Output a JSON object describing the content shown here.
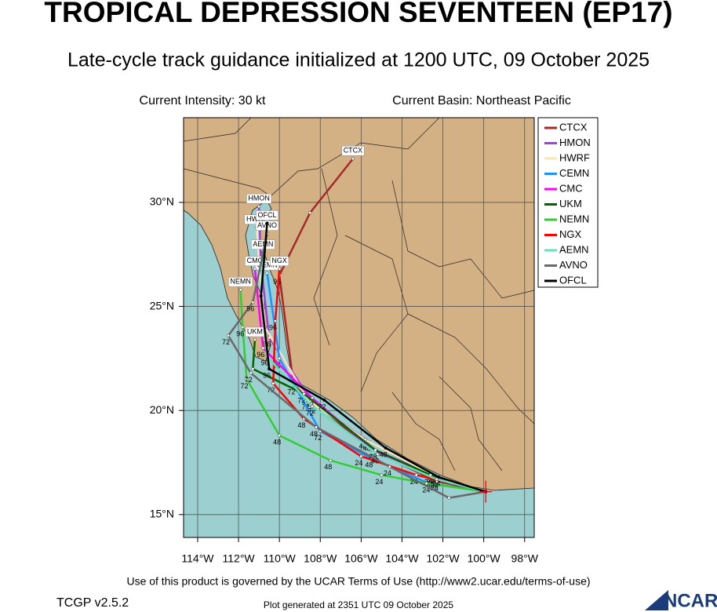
{
  "chart_data": {
    "type": "line",
    "title": "TROPICAL DEPRESSION SEVENTEEN (EP17)",
    "subtitle": "Late-cycle track guidance initialized at 1200 UTC, 09 October 2025",
    "intensity": "Current Intensity: 30 kt",
    "basin": "Current Basin: Northeast Pacific",
    "footer": "Use of this product is governed by the UCAR Terms of Use (http://www2.ucar.edu/terms-of-use)",
    "version": "TCGP v2.5.2",
    "generated": "Plot generated at 2351 UTC   09 October 2025",
    "logo": "NCAR",
    "xlim": [
      -114.69,
      -97.53
    ],
    "ylim": [
      13.9,
      34.07
    ],
    "xticks": [
      {
        "value": -114,
        "label": "114°W"
      },
      {
        "value": -112,
        "label": "112°W"
      },
      {
        "value": -110,
        "label": "110°W"
      },
      {
        "value": -108,
        "label": "108°W"
      },
      {
        "value": -106,
        "label": "106°W"
      },
      {
        "value": -104,
        "label": "104°W"
      },
      {
        "value": -102,
        "label": "102°W"
      },
      {
        "value": -100,
        "label": "100°W"
      },
      {
        "value": -98,
        "label": "98°W"
      }
    ],
    "yticks": [
      {
        "value": 15,
        "label": "15°N"
      },
      {
        "value": 20,
        "label": "20°N"
      },
      {
        "value": 25,
        "label": "25°N"
      },
      {
        "value": 30,
        "label": "30°N"
      }
    ],
    "grid": true,
    "legend": "upper right",
    "series": [
      {
        "name": "CTCX",
        "color": "#a52a2a",
        "x": [
          -99.9,
          -102.3,
          -105.5,
          -109.3,
          -110.0,
          -108.5,
          -106.4
        ],
        "values": [
          16.1,
          16.6,
          18.1,
          21.2,
          26.5,
          29.5,
          32.1
        ],
        "labels": [
          null,
          "24",
          "48",
          "72",
          "96",
          null,
          null
        ]
      },
      {
        "name": "HMON",
        "color": "#a040e0",
        "x": [
          -99.9,
          -102.4,
          -105.6,
          -108.3,
          -110.5,
          -110.9,
          -111.0
        ],
        "values": [
          16.1,
          16.8,
          18.5,
          20.3,
          23.5,
          27.0,
          29.8
        ],
        "labels": [
          null,
          "24",
          "48",
          "72",
          "96",
          null,
          null
        ]
      },
      {
        "name": "HWRF",
        "color": "#ffe4b5",
        "x": [
          -99.9,
          -102.5,
          -105.8,
          -108.6,
          -110.7,
          -111.0,
          -111.1
        ],
        "values": [
          16.1,
          16.9,
          18.6,
          20.5,
          24.0,
          27.0,
          28.8
        ],
        "labels": [
          null,
          "24",
          "48",
          "72",
          "96",
          null,
          null
        ]
      },
      {
        "name": "CEMN",
        "color": "#1e90ff",
        "x": [
          -99.9,
          -102.7,
          -105.5,
          -108.0,
          -110.0,
          -110.6
        ],
        "values": [
          16.1,
          16.5,
          17.7,
          19.0,
          22.5,
          26.6
        ],
        "labels": [
          null,
          "24",
          "48",
          "72",
          "96",
          null
        ]
      },
      {
        "name": "CMC",
        "color": "#ff00ff",
        "x": [
          -99.9,
          -102.5,
          -105.3,
          -108.4,
          -110.8,
          -111.2
        ],
        "values": [
          16.1,
          16.8,
          18.0,
          20.6,
          23.0,
          26.8
        ],
        "labels": [
          null,
          "24",
          "48",
          "72",
          "96",
          null
        ]
      },
      {
        "name": "UKM",
        "color": "#006400",
        "x": [
          -99.9,
          -102.6,
          -105.3,
          -108.8,
          -111.3,
          -111.2
        ],
        "values": [
          16.1,
          16.9,
          18.1,
          20.8,
          22.0,
          23.4
        ],
        "labels": [
          null,
          "24",
          "48",
          "72",
          null,
          null
        ]
      },
      {
        "name": "NEMN",
        "color": "#32cd32",
        "x": [
          -99.9,
          -102.8,
          -105.0,
          -107.5,
          -110.0,
          -111.6,
          -111.8,
          -111.9
        ],
        "values": [
          16.1,
          16.5,
          16.9,
          17.6,
          18.8,
          21.5,
          24.0,
          25.8
        ],
        "labels": [
          null,
          null,
          "24",
          "48",
          "48",
          "72",
          "96",
          null
        ]
      },
      {
        "name": "NGX",
        "color": "#ff0000",
        "x": [
          -99.9,
          -101.5,
          -103.3,
          -106.0,
          -108.8,
          -110.3,
          -110.2,
          -110.0
        ],
        "values": [
          16.1,
          16.5,
          16.9,
          17.8,
          19.6,
          21.3,
          24.3,
          26.8
        ],
        "labels": [
          null,
          null,
          "24",
          "24",
          "48",
          "72",
          "96",
          null
        ]
      },
      {
        "name": "AEMN",
        "color": "#66e0c0",
        "x": [
          -99.9,
          -102.3,
          -105.2,
          -108.4,
          -110.6,
          -110.9,
          -110.8
        ],
        "values": [
          16.1,
          16.7,
          17.9,
          20.2,
          22.6,
          25.5,
          27.6
        ],
        "labels": [
          null,
          "24",
          "48",
          "72",
          "96",
          null,
          null
        ]
      },
      {
        "name": "AVNO",
        "color": "#696969",
        "x": [
          -99.9,
          -101.7,
          -104.6,
          -108.2,
          -111.4,
          -112.5,
          -111.3,
          -110.6
        ],
        "values": [
          16.1,
          15.8,
          17.3,
          19.2,
          21.8,
          23.6,
          25.2,
          28.5
        ],
        "labels": [
          null,
          null,
          "24",
          "48",
          "72",
          "72",
          "96",
          null
        ]
      },
      {
        "name": "OFCL",
        "color": "#000000",
        "x": [
          -99.9,
          -102.2,
          -104.8,
          -107.8,
          -110.5,
          -110.9,
          -110.6
        ],
        "values": [
          16.1,
          16.8,
          18.2,
          20.5,
          22.0,
          25.5,
          29.0
        ],
        "labels": [
          null,
          "24",
          "48",
          "72",
          "96",
          null,
          null
        ]
      }
    ]
  }
}
